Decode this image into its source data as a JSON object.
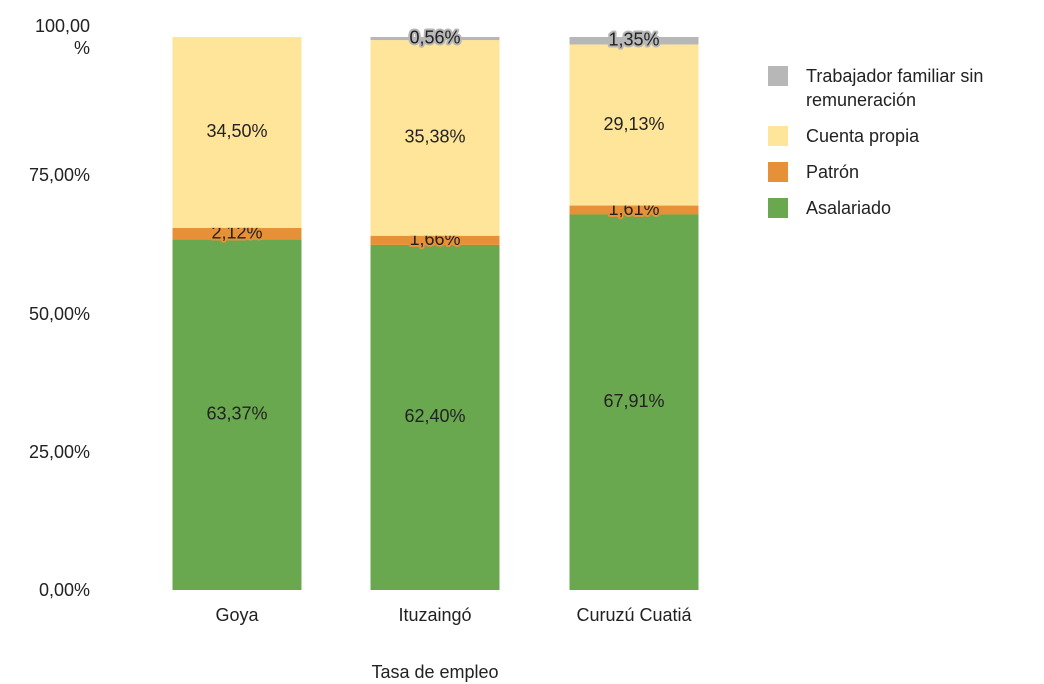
{
  "chart_data": {
    "type": "stacked_bar",
    "x_label": "Tasa de empleo",
    "categories": [
      "Goya",
      "Ituzaingó",
      "Curuzú Cuatiá"
    ],
    "series": [
      {
        "name": "Asalariado",
        "color": "#6aa84f",
        "values": [
          63.37,
          62.4,
          67.91
        ],
        "value_labels": [
          "63,37%",
          "62,40%",
          "67,91%"
        ]
      },
      {
        "name": "Patrón",
        "color": "#e69138",
        "values": [
          2.12,
          1.66,
          1.61
        ],
        "value_labels": [
          "2,12%",
          "1,66%",
          "1,61%"
        ]
      },
      {
        "name": "Cuenta propia",
        "color": "#ffe599",
        "values": [
          34.5,
          35.38,
          29.13
        ],
        "value_labels": [
          "34,50%",
          "35,38%",
          "29,13%"
        ]
      },
      {
        "name": "Trabajador familiar sin remuneración",
        "color": "#b7b7b7",
        "values": [
          null,
          0.56,
          1.35
        ],
        "value_labels": [
          null,
          "0,56%",
          "1,35%"
        ]
      }
    ],
    "ylim": [
      0,
      100
    ],
    "yticks": [
      {
        "value": 0,
        "label": "0,00%"
      },
      {
        "value": 25,
        "label": "25,00%"
      },
      {
        "value": 50,
        "label": "50,00%"
      },
      {
        "value": 75,
        "label": "75,00%"
      },
      {
        "value": 100,
        "label": "100,00 %"
      }
    ],
    "grid": false,
    "legend": "right"
  }
}
